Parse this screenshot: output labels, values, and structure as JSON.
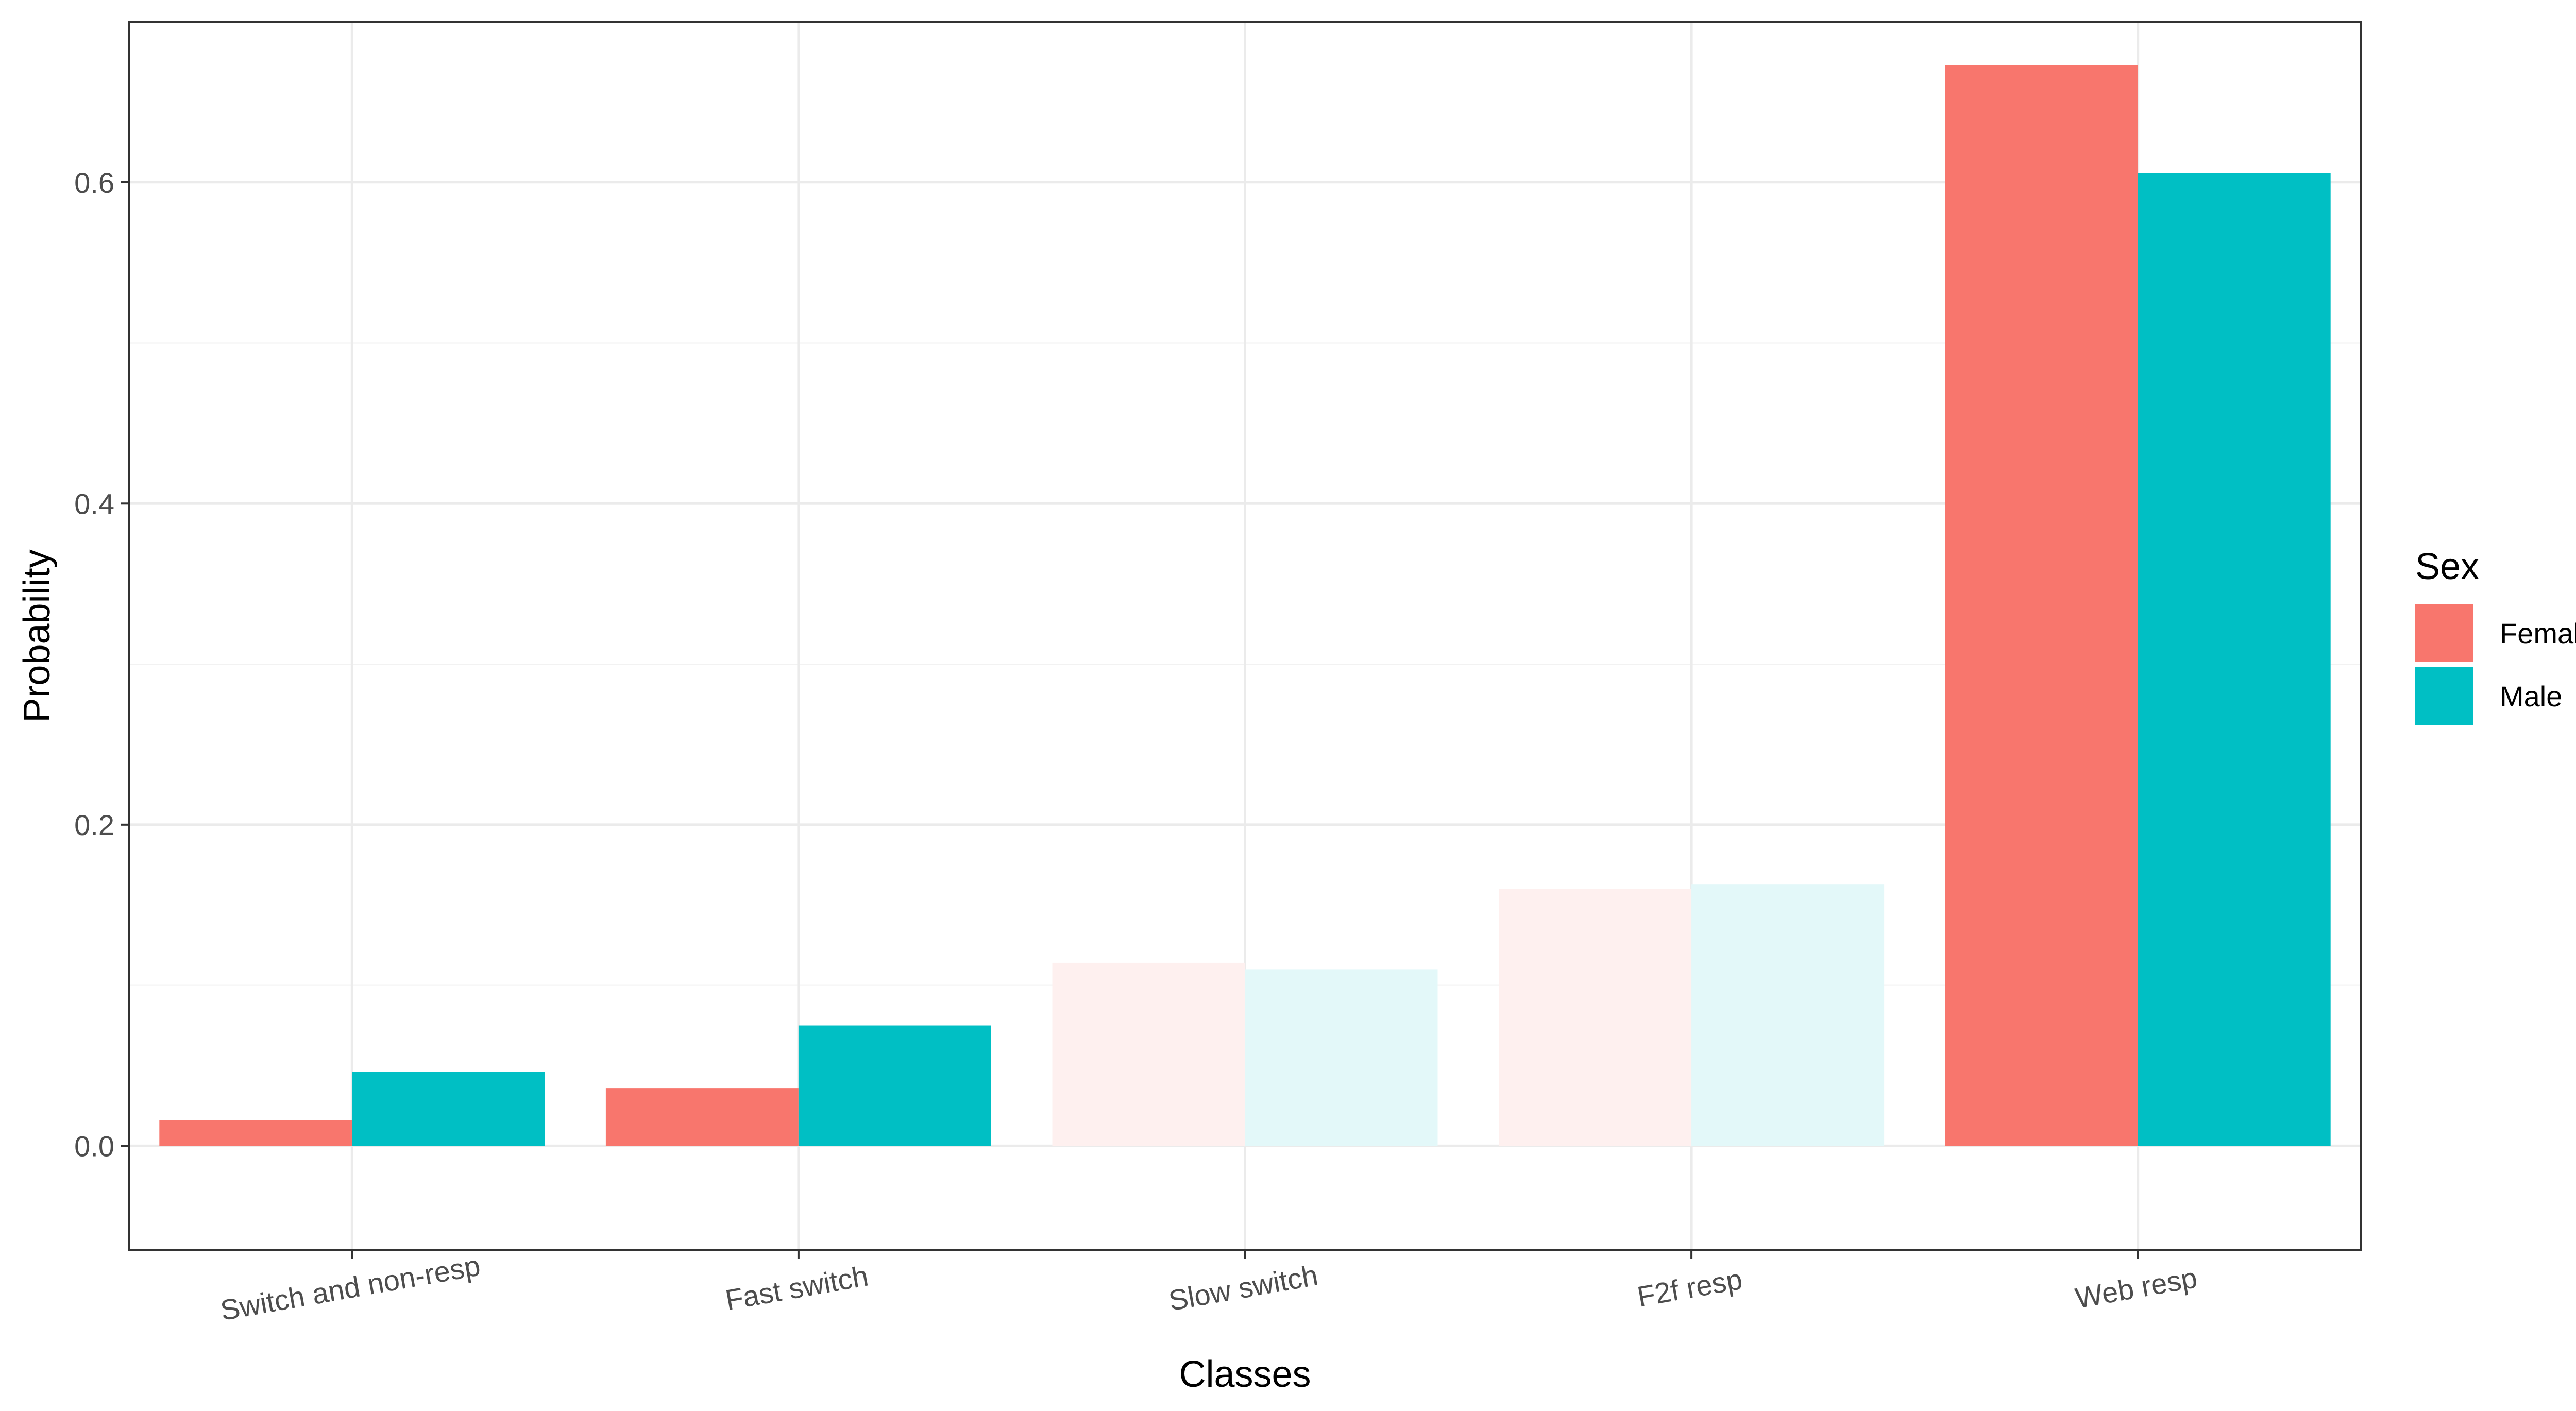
{
  "chart_data": {
    "type": "bar",
    "title": "",
    "xlabel": "Classes",
    "ylabel": "Probability",
    "ylim": [
      -0.065,
      0.7
    ],
    "yticks": [
      0.0,
      0.2,
      0.4,
      0.6
    ],
    "ytick_labels": [
      "0.0",
      "0.2",
      "0.4",
      "0.6"
    ],
    "grid": true,
    "categories": [
      "Switch and non-resp",
      "Fast switch",
      "Slow switch",
      "F2f resp",
      "Web resp"
    ],
    "highlighted_categories": [
      "Switch and non-resp",
      "Fast switch",
      "Web resp"
    ],
    "dimmed_categories": [
      "Slow switch",
      "F2f resp"
    ],
    "series": [
      {
        "name": "Female",
        "color": "#F8766D",
        "values": [
          0.016,
          0.036,
          0.114,
          0.16,
          0.673
        ]
      },
      {
        "name": "Male",
        "color": "#00BFC4",
        "values": [
          0.046,
          0.075,
          0.11,
          0.163,
          0.606
        ]
      }
    ],
    "legend": {
      "title": "Sex",
      "placement": "right",
      "entries": [
        "Female",
        "Male"
      ]
    }
  }
}
